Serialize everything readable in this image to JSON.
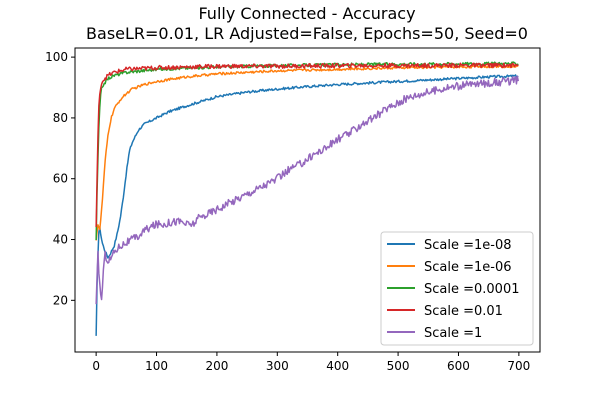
{
  "chart_data": {
    "type": "line",
    "title": "Fully Connected - Accuracy",
    "subtitle": "BaseLR=0.01, LR Adjusted=False, Epochs=50, Seed=0",
    "xlabel": "",
    "ylabel": "",
    "xlim": [
      -35,
      735
    ],
    "ylim": [
      3,
      103
    ],
    "xticks": [
      0,
      100,
      200,
      300,
      400,
      500,
      600,
      700
    ],
    "yticks": [
      20,
      40,
      60,
      80,
      100
    ],
    "grid": false,
    "legend_position": "lower-right",
    "series": [
      {
        "name": "Scale =1e-08",
        "color": "#1f77b4",
        "noise": 0.4,
        "x": [
          0,
          2,
          5,
          10,
          15,
          20,
          25,
          30,
          35,
          40,
          45,
          50,
          55,
          60,
          70,
          80,
          100,
          120,
          150,
          200,
          250,
          300,
          350,
          400,
          450,
          500,
          550,
          600,
          650,
          700
        ],
        "y": [
          8,
          30,
          45,
          39,
          36,
          34,
          36,
          38,
          42,
          47,
          54,
          62,
          69,
          72,
          76,
          78,
          80,
          82,
          84,
          87,
          88.5,
          89.5,
          90.3,
          91,
          91.5,
          92,
          92.5,
          93,
          93.5,
          93.8
        ]
      },
      {
        "name": "Scale =1e-06",
        "color": "#ff7f0e",
        "noise": 0.4,
        "x": [
          0,
          3,
          6,
          10,
          15,
          20,
          25,
          30,
          40,
          50,
          60,
          80,
          100,
          150,
          200,
          300,
          400,
          500,
          600,
          700
        ],
        "y": [
          40,
          45,
          43,
          52,
          66,
          75,
          80,
          83,
          86,
          88,
          89.5,
          91,
          92,
          93.5,
          94.5,
          95.5,
          96,
          96.5,
          96.8,
          97
        ]
      },
      {
        "name": "Scale =0.0001",
        "color": "#2ca02c",
        "noise": 0.5,
        "x": [
          0,
          2,
          5,
          8,
          12,
          16,
          20,
          30,
          50,
          100,
          200,
          300,
          400,
          500,
          600,
          700
        ],
        "y": [
          40,
          60,
          80,
          89,
          91,
          92,
          93,
          94,
          95,
          96,
          96.8,
          97.2,
          97.5,
          97.7,
          97.8,
          97.9
        ]
      },
      {
        "name": "Scale =0.01",
        "color": "#d62728",
        "noise": 0.7,
        "x": [
          0,
          2,
          4,
          7,
          10,
          14,
          20,
          30,
          50,
          100,
          200,
          300,
          400,
          500,
          600,
          700
        ],
        "y": [
          44,
          65,
          82,
          90,
          92,
          93,
          94,
          95,
          96,
          96.5,
          97,
          97,
          97.2,
          97.2,
          97.3,
          97.3
        ]
      },
      {
        "name": "Scale =1",
        "color": "#9467bd",
        "noise": 1.3,
        "x": [
          0,
          3,
          6,
          9,
          12,
          15,
          20,
          25,
          30,
          40,
          50,
          60,
          70,
          80,
          90,
          100,
          110,
          120,
          130,
          140,
          150,
          160,
          170,
          180,
          190,
          200,
          220,
          240,
          260,
          280,
          300,
          320,
          340,
          360,
          380,
          400,
          420,
          440,
          460,
          480,
          500,
          520,
          540,
          560,
          580,
          600,
          620,
          650,
          680,
          700
        ],
        "y": [
          18,
          35,
          25,
          20,
          30,
          35,
          33,
          34,
          36,
          38,
          39,
          40,
          41,
          43,
          44,
          45,
          45,
          45.5,
          46,
          46,
          45,
          45,
          47,
          48,
          49,
          50,
          52,
          54,
          56,
          58,
          60,
          63,
          65,
          68,
          70,
          73,
          75,
          78,
          80,
          83,
          85,
          87,
          88,
          89,
          90,
          90.5,
          91,
          91.5,
          92,
          92.5
        ]
      }
    ]
  }
}
